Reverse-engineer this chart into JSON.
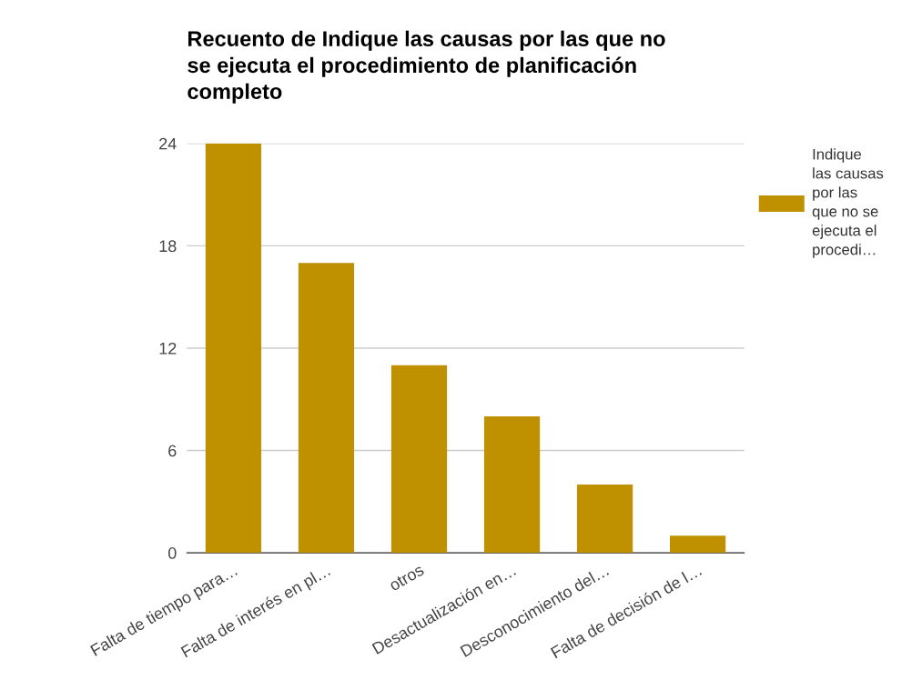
{
  "chart_data": {
    "type": "bar",
    "title": "Recuento de Indique las causas por las que no se ejecuta el procedimiento de planificación completo",
    "categories": [
      "Falta de tiempo para…",
      "Falta de interés en pl…",
      "otros",
      "Desactualización en…",
      "Desconocimiento del…",
      "Falta de decisión de l…"
    ],
    "series": [
      {
        "name": "Indique las causas por las que no se ejecuta el procedi…",
        "color": "#bf9000",
        "values": [
          24,
          17,
          11,
          8,
          4,
          1
        ]
      }
    ],
    "ylim": [
      0,
      24
    ],
    "yticks": [
      0,
      6,
      12,
      18,
      24
    ],
    "grid": "y",
    "legend": "right"
  }
}
